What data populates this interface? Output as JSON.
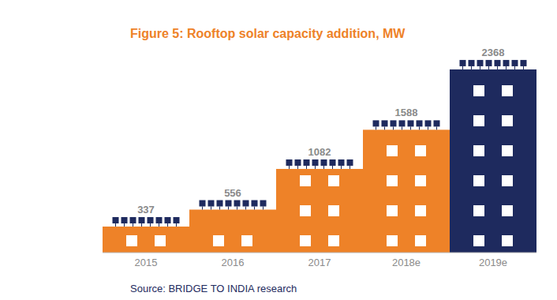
{
  "chart_data": {
    "type": "bar",
    "title": "Figure 5: Rooftop solar capacity addition, MW",
    "source": "Source: BRIDGE TO INDIA research",
    "categories": [
      "2015",
      "2016",
      "2017",
      "2018e",
      "2019e"
    ],
    "values": [
      337,
      556,
      1082,
      1588,
      2368
    ],
    "colors": [
      "#ee8228",
      "#ee8228",
      "#ee8228",
      "#ee8228",
      "#1e2a5e"
    ],
    "ylim": [
      0,
      2500
    ],
    "yticks": [
      0,
      2500
    ],
    "data_labels": true,
    "tick_labels": "x",
    "grid": false
  }
}
